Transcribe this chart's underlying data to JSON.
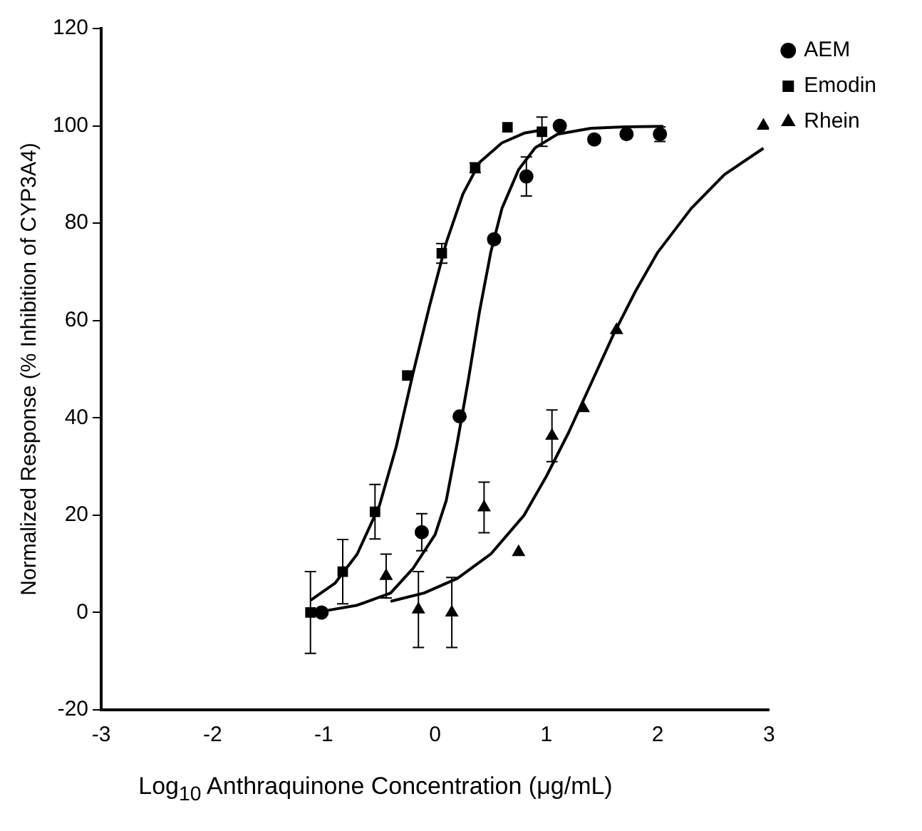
{
  "chart_data": {
    "type": "scatter",
    "xlabel": "Log$_{10}$ Anthraquinone Concentration (μg/mL)",
    "ylabel": "Normalized Response (% Inhibition of CYP3A4)",
    "xlim": [
      -3,
      3
    ],
    "xticks": [
      -3,
      -2,
      -1,
      0,
      1,
      2,
      3
    ],
    "ylim": [
      -20,
      120
    ],
    "yticks": [
      -20,
      0,
      20,
      40,
      60,
      80,
      100,
      120
    ],
    "grid": false,
    "legend": "top right",
    "series": [
      {
        "name": "AEM",
        "type": "scatter",
        "marker": "circle",
        "color": "#000000",
        "x": [
          -1.02,
          -0.12,
          0.22,
          0.53,
          0.82,
          1.12,
          1.43,
          1.72,
          2.02
        ],
        "values": [
          0,
          16.5,
          40.3,
          76.7,
          89.6,
          100,
          97.2,
          98.3,
          98.3
        ],
        "errors": [
          null,
          3.8,
          null,
          null,
          4,
          null,
          null,
          null,
          1.5
        ]
      },
      {
        "name": "Emodin",
        "type": "scatter",
        "marker": "square",
        "color": "#000000",
        "x": [
          -1.12,
          -0.83,
          -0.54,
          -0.25,
          0.06,
          0.36,
          0.65,
          0.96
        ],
        "values": [
          0,
          8.4,
          20.7,
          48.7,
          73.8,
          91.4,
          99.7,
          98.8
        ],
        "errors": [
          8.4,
          6.6,
          5.6,
          null,
          2,
          1,
          null,
          3
        ]
      },
      {
        "name": "Rhein",
        "type": "scatter",
        "marker": "triangle",
        "color": "#000000",
        "x": [
          -0.44,
          -0.15,
          0.15,
          0.44,
          0.75,
          1.05,
          1.33,
          1.63,
          2.95
        ],
        "values": [
          7.5,
          0.6,
          0,
          21.6,
          12.4,
          36.3,
          42,
          58,
          100
        ],
        "errors": [
          4.5,
          7.8,
          7.2,
          5.2,
          null,
          5.3,
          null,
          null,
          null
        ]
      },
      {
        "type": "line",
        "marker": "none",
        "color": "#000000",
        "x": [
          -1.0,
          -0.7,
          -0.4,
          -0.2,
          0,
          0.1,
          0.2,
          0.3,
          0.4,
          0.5,
          0.6,
          0.75,
          0.9,
          1.1,
          1.4,
          1.7,
          2.05
        ],
        "values": [
          0.3,
          1.5,
          4,
          9,
          16,
          23,
          35,
          48,
          62,
          74,
          83,
          91,
          95.5,
          98.3,
          99.5,
          99.8,
          99.9
        ]
      },
      {
        "type": "line",
        "marker": "none",
        "color": "#000000",
        "x": [
          -1.12,
          -0.9,
          -0.7,
          -0.5,
          -0.35,
          -0.2,
          -0.05,
          0.1,
          0.25,
          0.4,
          0.6,
          0.8,
          1.0
        ],
        "values": [
          2.5,
          6,
          12,
          22,
          34,
          49,
          63,
          76,
          86,
          92.5,
          96.5,
          98.5,
          99.3
        ]
      },
      {
        "type": "line",
        "marker": "none",
        "color": "#000000",
        "x": [
          -0.4,
          -0.1,
          0.2,
          0.5,
          0.8,
          1.0,
          1.2,
          1.4,
          1.6,
          1.8,
          2.0,
          2.3,
          2.6,
          2.95
        ],
        "values": [
          2.3,
          4,
          7,
          12,
          20,
          28,
          37,
          47,
          57,
          66,
          74,
          83,
          90,
          95.4
        ]
      }
    ]
  }
}
